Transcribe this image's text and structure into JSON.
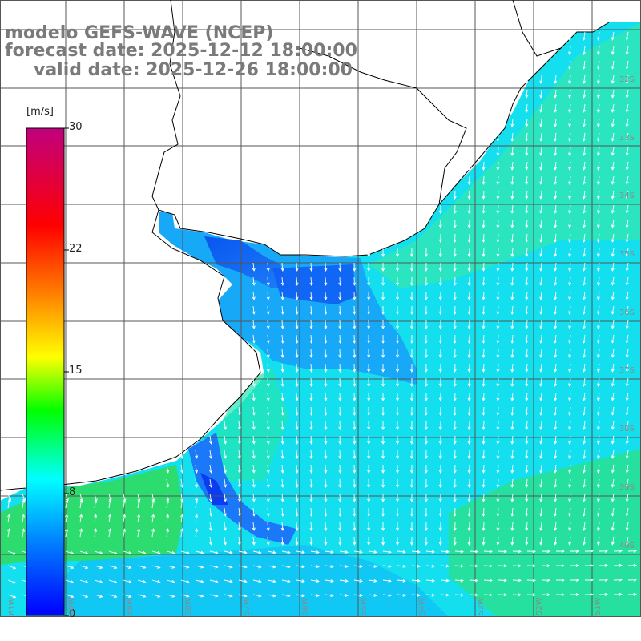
{
  "title": {
    "line1": "modelo GEFS-WAVE (NCEP)",
    "line2": "forecast date: 2025-12-12 18:00:00",
    "line3": "valid date: 2025-12-26 18:00:00"
  },
  "colorbar": {
    "unit": "[m/s]",
    "ticks": [
      "30",
      "22",
      "15",
      "8",
      "0"
    ],
    "stops": [
      "#0000ff",
      "#0080ff",
      "#00ffff",
      "#00ff00",
      "#ffff00",
      "#ff8000",
      "#ff0000",
      "#c0007f"
    ]
  },
  "axes": {
    "lat_labels": [
      "32S",
      "33S",
      "34S",
      "35S",
      "36S",
      "37S",
      "38S",
      "39S",
      "40S"
    ],
    "lon_labels": [
      "61W",
      "60W",
      "59W",
      "58W",
      "57W",
      "56W",
      "55W",
      "54W",
      "53W",
      "52W",
      "51W"
    ]
  },
  "colors": {
    "land": "#ffffff",
    "grid": "#555555",
    "coast": "#000000",
    "arrows": "#ffffff"
  }
}
